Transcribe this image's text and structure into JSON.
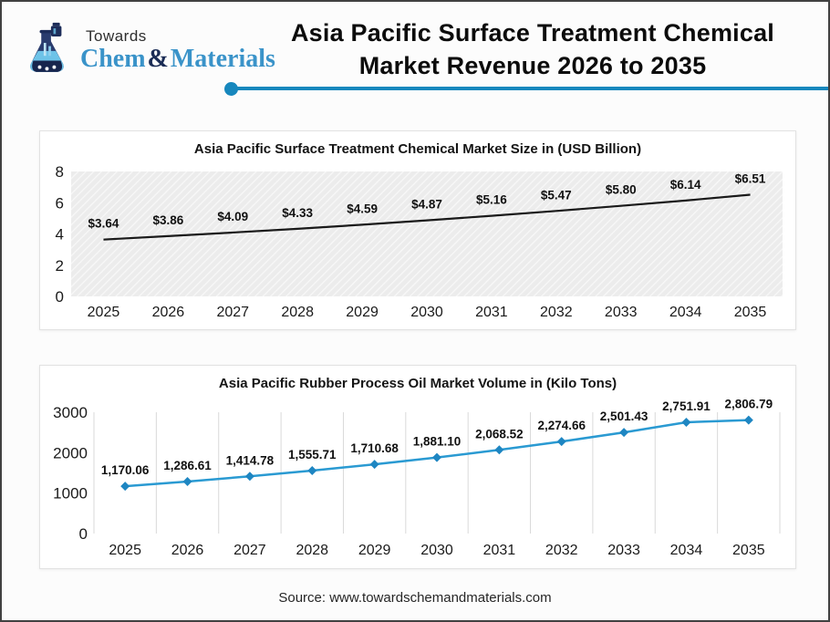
{
  "header": {
    "logo": {
      "towards": "Towards",
      "chem": "Chem",
      "ampersand": "&",
      "materials": "Materials"
    },
    "title_line1": "Asia Pacific Surface Treatment Chemical",
    "title_line2": "Market Revenue 2026 to 2035"
  },
  "colors": {
    "accent_blue": "#1787bd",
    "brand_blue": "#3a93c9",
    "brand_navy": "#1b2c55",
    "text_dark": "#0c0c0c"
  },
  "chart_data": [
    {
      "type": "line",
      "title": "Asia Pacific Surface Treatment Chemical Market Size in (USD Billion)",
      "categories": [
        "2025",
        "2026",
        "2027",
        "2028",
        "2029",
        "2030",
        "2031",
        "2032",
        "2033",
        "2034",
        "2035"
      ],
      "values": [
        3.64,
        3.86,
        4.09,
        4.33,
        4.59,
        4.87,
        5.16,
        5.47,
        5.8,
        6.14,
        6.51
      ],
      "labels": [
        "$3.64",
        "$3.86",
        "$4.09",
        "$4.33",
        "$4.59",
        "$4.87",
        "$5.16",
        "$5.47",
        "$5.80",
        "$6.14",
        "$6.51"
      ],
      "xlabel": "",
      "ylabel": "",
      "ylim": [
        0,
        8
      ],
      "yticks": [
        0,
        2,
        4,
        6,
        8
      ],
      "line_color": "#1a1a1a",
      "markers": false,
      "plot_bg": "hatch",
      "grid": "none",
      "legend": "none"
    },
    {
      "type": "line",
      "title": "Asia Pacific Rubber Process Oil Market Volume in (Kilo Tons)",
      "categories": [
        "2025",
        "2026",
        "2027",
        "2028",
        "2029",
        "2030",
        "2031",
        "2032",
        "2033",
        "2034",
        "2035"
      ],
      "values": [
        1170.06,
        1286.61,
        1414.78,
        1555.71,
        1710.68,
        1881.1,
        2068.52,
        2274.66,
        2501.43,
        2751.91,
        2806.79
      ],
      "labels": [
        "1,170.06",
        "1,286.61",
        "1,414.78",
        "1,555.71",
        "1,710.68",
        "1,881.10",
        "2,068.52",
        "2,274.66",
        "2,501.43",
        "2,751.91",
        "2,806.79"
      ],
      "xlabel": "",
      "ylabel": "",
      "ylim": [
        0,
        3000
      ],
      "yticks": [
        0,
        1000,
        2000,
        3000
      ],
      "line_color": "#2a9ad2",
      "marker_color": "#1e86c2",
      "markers": true,
      "plot_bg": "white",
      "grid": "vertical",
      "legend": "none"
    }
  ],
  "footer": {
    "source": "Source: www.towardschemandmaterials.com"
  }
}
